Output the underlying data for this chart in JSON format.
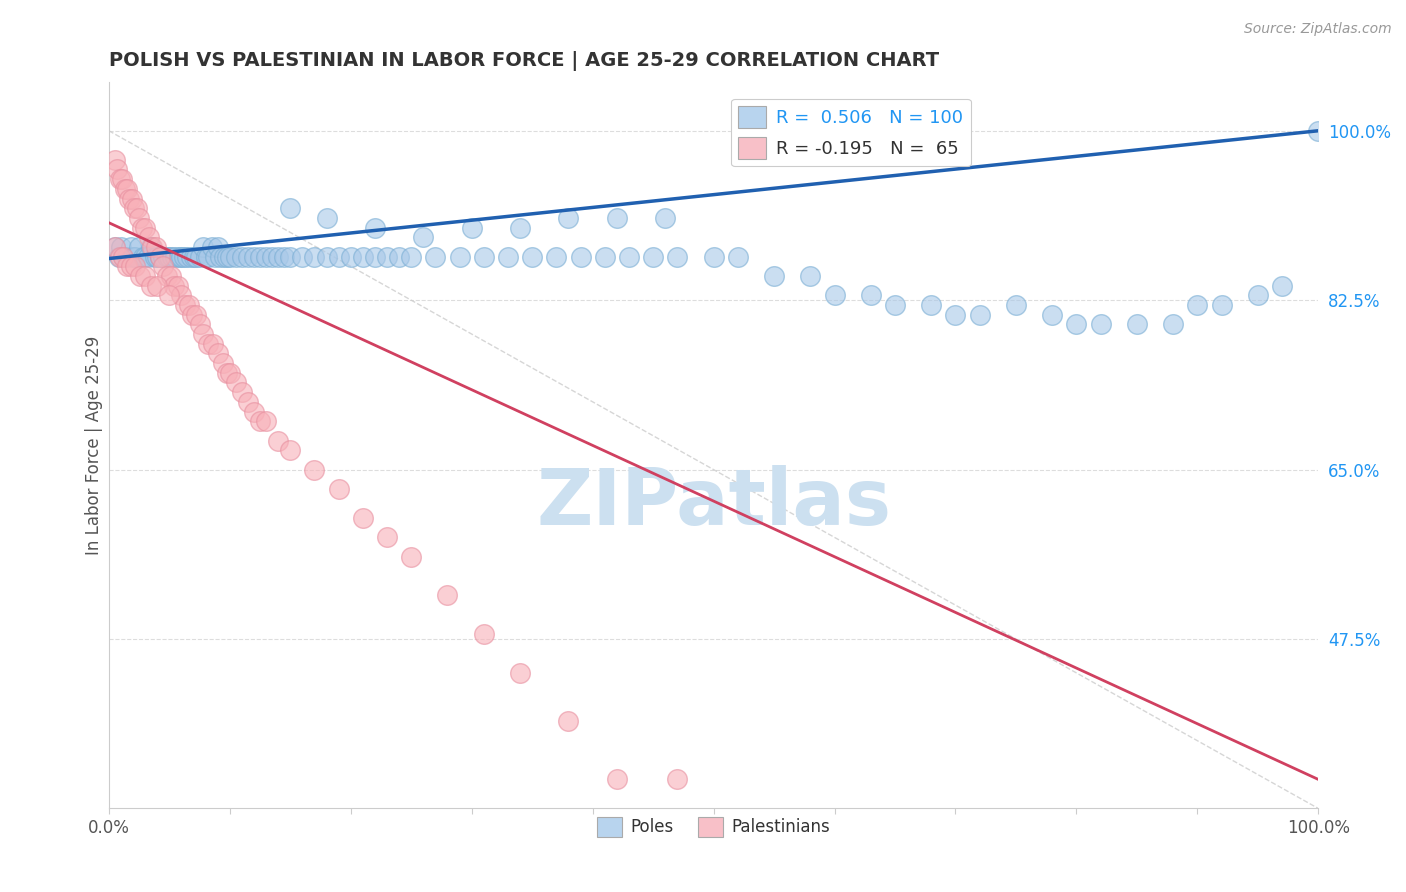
{
  "title": "POLISH VS PALESTINIAN IN LABOR FORCE | AGE 25-29 CORRELATION CHART",
  "source": "Source: ZipAtlas.com",
  "ylabel": "In Labor Force | Age 25-29",
  "xlim": [
    0.0,
    1.0
  ],
  "ylim": [
    0.3,
    1.05
  ],
  "yticks": [
    0.475,
    0.65,
    0.825,
    1.0
  ],
  "ytick_labels": [
    "47.5%",
    "65.0%",
    "82.5%",
    "100.0%"
  ],
  "xticks": [
    0.0,
    0.1,
    0.2,
    0.3,
    0.4,
    0.5,
    0.6,
    0.7,
    0.8,
    0.9,
    1.0
  ],
  "xtick_labels": [
    "0.0%",
    "",
    "",
    "",
    "",
    "",
    "",
    "",
    "",
    "",
    "100.0%"
  ],
  "poles_color": "#a8c8e8",
  "poles_edge_color": "#7aaed4",
  "poles_line_color": "#2060b0",
  "palestinians_color": "#f8b0b8",
  "palestinians_edge_color": "#e890a0",
  "palestinians_line_color": "#d04060",
  "watermark_color": "#cce0f0",
  "background_color": "#ffffff",
  "poles_x": [
    0.005,
    0.008,
    0.01,
    0.012,
    0.015,
    0.018,
    0.02,
    0.022,
    0.025,
    0.028,
    0.03,
    0.032,
    0.035,
    0.038,
    0.04,
    0.042,
    0.045,
    0.048,
    0.05,
    0.052,
    0.055,
    0.058,
    0.06,
    0.062,
    0.065,
    0.068,
    0.07,
    0.072,
    0.075,
    0.078,
    0.08,
    0.082,
    0.085,
    0.088,
    0.09,
    0.092,
    0.095,
    0.098,
    0.1,
    0.105,
    0.11,
    0.115,
    0.12,
    0.125,
    0.13,
    0.135,
    0.14,
    0.145,
    0.15,
    0.16,
    0.17,
    0.18,
    0.19,
    0.2,
    0.21,
    0.22,
    0.23,
    0.24,
    0.25,
    0.27,
    0.29,
    0.31,
    0.33,
    0.35,
    0.37,
    0.39,
    0.41,
    0.43,
    0.45,
    0.47,
    0.5,
    0.52,
    0.55,
    0.58,
    0.6,
    0.63,
    0.65,
    0.68,
    0.7,
    0.72,
    0.75,
    0.78,
    0.8,
    0.82,
    0.85,
    0.88,
    0.9,
    0.92,
    0.95,
    0.97,
    0.15,
    0.18,
    0.22,
    0.26,
    0.3,
    0.34,
    0.38,
    0.42,
    0.46,
    1.0
  ],
  "poles_y": [
    0.88,
    0.87,
    0.88,
    0.87,
    0.87,
    0.88,
    0.87,
    0.87,
    0.88,
    0.87,
    0.87,
    0.87,
    0.88,
    0.87,
    0.87,
    0.87,
    0.87,
    0.87,
    0.87,
    0.87,
    0.87,
    0.87,
    0.87,
    0.87,
    0.87,
    0.87,
    0.87,
    0.87,
    0.87,
    0.88,
    0.87,
    0.87,
    0.88,
    0.87,
    0.88,
    0.87,
    0.87,
    0.87,
    0.87,
    0.87,
    0.87,
    0.87,
    0.87,
    0.87,
    0.87,
    0.87,
    0.87,
    0.87,
    0.87,
    0.87,
    0.87,
    0.87,
    0.87,
    0.87,
    0.87,
    0.87,
    0.87,
    0.87,
    0.87,
    0.87,
    0.87,
    0.87,
    0.87,
    0.87,
    0.87,
    0.87,
    0.87,
    0.87,
    0.87,
    0.87,
    0.87,
    0.87,
    0.85,
    0.85,
    0.83,
    0.83,
    0.82,
    0.82,
    0.81,
    0.81,
    0.82,
    0.81,
    0.8,
    0.8,
    0.8,
    0.8,
    0.82,
    0.82,
    0.83,
    0.84,
    0.92,
    0.91,
    0.9,
    0.89,
    0.9,
    0.9,
    0.91,
    0.91,
    0.91,
    1.0
  ],
  "palestinians_x": [
    0.005,
    0.007,
    0.009,
    0.011,
    0.013,
    0.015,
    0.017,
    0.019,
    0.021,
    0.023,
    0.025,
    0.027,
    0.03,
    0.033,
    0.036,
    0.039,
    0.042,
    0.045,
    0.048,
    0.051,
    0.054,
    0.057,
    0.06,
    0.063,
    0.066,
    0.069,
    0.072,
    0.075,
    0.078,
    0.082,
    0.086,
    0.09,
    0.094,
    0.098,
    0.1,
    0.105,
    0.11,
    0.115,
    0.12,
    0.125,
    0.13,
    0.14,
    0.15,
    0.17,
    0.19,
    0.21,
    0.23,
    0.25,
    0.28,
    0.31,
    0.34,
    0.38,
    0.42,
    0.47,
    0.005,
    0.009,
    0.012,
    0.015,
    0.018,
    0.022,
    0.026,
    0.03,
    0.035,
    0.04,
    0.05
  ],
  "palestinians_y": [
    0.97,
    0.96,
    0.95,
    0.95,
    0.94,
    0.94,
    0.93,
    0.93,
    0.92,
    0.92,
    0.91,
    0.9,
    0.9,
    0.89,
    0.88,
    0.88,
    0.87,
    0.86,
    0.85,
    0.85,
    0.84,
    0.84,
    0.83,
    0.82,
    0.82,
    0.81,
    0.81,
    0.8,
    0.79,
    0.78,
    0.78,
    0.77,
    0.76,
    0.75,
    0.75,
    0.74,
    0.73,
    0.72,
    0.71,
    0.7,
    0.7,
    0.68,
    0.67,
    0.65,
    0.63,
    0.6,
    0.58,
    0.56,
    0.52,
    0.48,
    0.44,
    0.39,
    0.33,
    0.33,
    0.88,
    0.87,
    0.87,
    0.86,
    0.86,
    0.86,
    0.85,
    0.85,
    0.84,
    0.84,
    0.83
  ]
}
